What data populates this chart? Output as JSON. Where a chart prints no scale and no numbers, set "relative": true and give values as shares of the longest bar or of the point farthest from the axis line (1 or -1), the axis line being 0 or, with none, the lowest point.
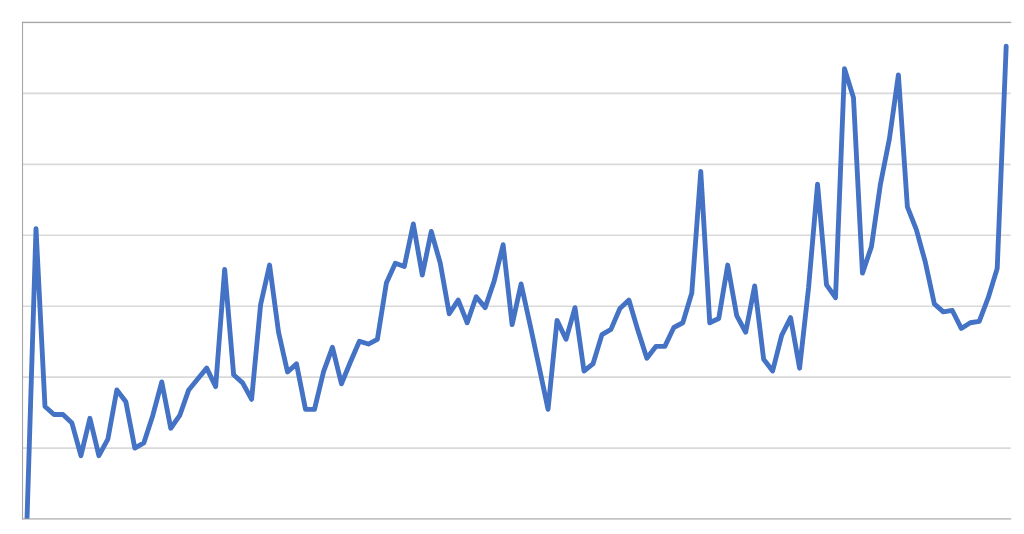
{
  "chart_data": {
    "type": "line",
    "relative": true,
    "grid": "y",
    "categories": [
      null,
      null,
      null,
      null,
      null,
      null,
      null,
      null,
      null,
      null,
      null,
      null,
      null,
      null,
      null,
      null,
      null,
      null,
      null,
      null,
      null,
      null,
      null,
      null,
      null,
      null,
      null,
      null,
      null,
      null,
      null,
      null,
      null,
      null,
      null,
      null,
      null,
      null,
      null,
      null,
      null,
      null,
      null,
      null,
      null,
      null,
      null,
      null,
      null,
      null,
      null,
      null,
      null,
      null,
      null,
      null,
      null,
      null,
      null,
      null,
      null,
      null,
      null,
      null,
      null,
      null,
      null,
      null,
      null,
      null,
      null,
      null,
      null,
      null,
      null,
      null,
      null,
      null,
      null,
      null,
      null,
      null,
      null,
      null,
      null,
      null,
      null,
      null,
      null,
      null,
      null,
      null,
      null,
      null,
      null,
      null,
      null,
      null,
      null,
      null,
      null,
      null,
      null,
      null,
      null,
      null,
      null,
      null,
      null,
      null
    ],
    "series": [
      {
        "color": "#4472c4",
        "values": [
          0,
          0.614,
          0.238,
          0.221,
          0.221,
          0.203,
          0.134,
          0.213,
          0.134,
          0.169,
          0.273,
          0.248,
          0.15,
          0.161,
          0.219,
          0.29,
          0.192,
          0.219,
          0.273,
          0.296,
          0.319,
          0.28,
          0.528,
          0.305,
          0.288,
          0.253,
          0.453,
          0.537,
          0.395,
          0.311,
          0.328,
          0.232,
          0.232,
          0.311,
          0.363,
          0.286,
          0.332,
          0.376,
          0.37,
          0.38,
          0.499,
          0.541,
          0.534,
          0.624,
          0.516,
          0.608,
          0.541,
          0.434,
          0.463,
          0.415,
          0.47,
          0.447,
          0.503,
          0.58,
          0.411,
          0.497,
          0.411,
          0.322,
          0.232,
          0.42,
          0.38,
          0.447,
          0.313,
          0.328,
          0.39,
          0.401,
          0.445,
          0.463,
          0.399,
          0.34,
          0.365,
          0.365,
          0.405,
          0.415,
          0.478,
          0.735,
          0.415,
          0.424,
          0.537,
          0.43,
          0.395,
          0.493,
          0.338,
          0.313,
          0.388,
          0.426,
          0.319,
          0.489,
          0.708,
          0.495,
          0.468,
          0.952,
          0.891,
          0.52,
          0.576,
          0.708,
          0.804,
          0.939,
          0.66,
          0.612,
          0.543,
          0.455,
          0.438,
          0.441,
          0.403,
          0.415,
          0.418,
          0.468,
          0.53,
          1
        ]
      }
    ]
  }
}
